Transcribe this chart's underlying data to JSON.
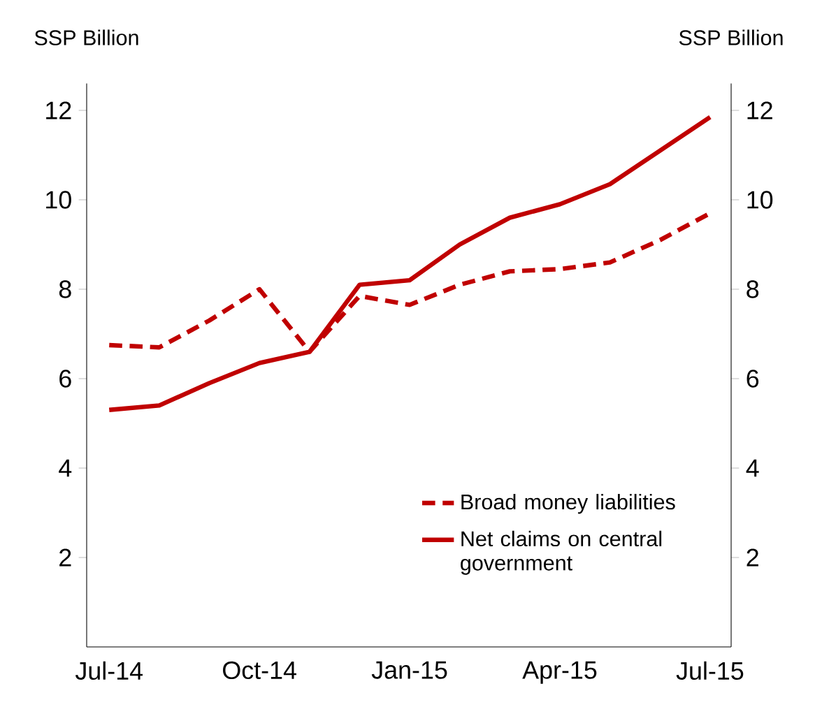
{
  "chart_data": {
    "type": "line",
    "ylabel": "SSP Billion",
    "y2label": "SSP Billion",
    "categories": [
      "Jul-14",
      null,
      null,
      "Oct-14",
      null,
      null,
      "Jan-15",
      null,
      null,
      "Apr-15",
      null,
      null,
      "Jul-15"
    ],
    "series": [
      {
        "name": "Broad money liabilities",
        "color": "#c00000",
        "line_style": "dashed",
        "values": [
          6.75,
          6.7,
          7.3,
          8.0,
          6.6,
          7.85,
          7.65,
          8.1,
          8.4,
          8.45,
          8.6,
          9.1,
          9.7
        ]
      },
      {
        "name": "Net claims on central government",
        "color": "#c00000",
        "line_style": "solid",
        "values": [
          5.3,
          5.4,
          5.9,
          6.35,
          6.6,
          8.1,
          8.2,
          9.0,
          9.6,
          9.9,
          10.35,
          11.1,
          11.85
        ]
      }
    ],
    "ylim": [
      0,
      12.6
    ],
    "yticks": [
      2,
      4,
      6,
      8,
      10,
      12
    ],
    "y2lim": [
      0,
      12.6
    ],
    "y2ticks": [
      2,
      4,
      6,
      8,
      10,
      12
    ],
    "legend": "bottom right",
    "grid": false,
    "marker": "none"
  }
}
